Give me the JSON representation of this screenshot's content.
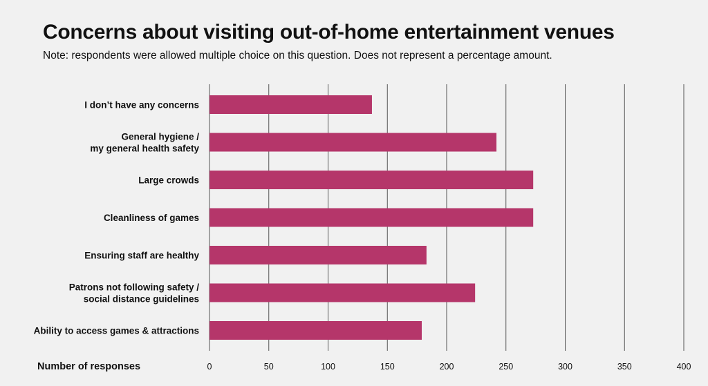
{
  "chart_data": {
    "type": "bar",
    "orientation": "horizontal",
    "title": "Concerns about visiting out-of-home entertainment venues",
    "subtitle": "Note: respondents were allowed multiple choice on this question.  Does not represent a percentage amount.",
    "xlabel": "Number of responses",
    "ylabel": "",
    "xlim": [
      0,
      400
    ],
    "xticks": [
      "0",
      "50",
      "100",
      "150",
      "200",
      "250",
      "300",
      "350",
      "400"
    ],
    "grid": true,
    "bar_color": "#b5366a",
    "categories": [
      [
        "I don’t have any concerns"
      ],
      [
        "General hygiene /",
        "my general health safety"
      ],
      [
        "Large crowds"
      ],
      [
        "Cleanliness of games"
      ],
      [
        "Ensuring staff are healthy"
      ],
      [
        "Patrons not following safety /",
        "social distance guidelines"
      ],
      [
        "Ability to access games & attractions"
      ]
    ],
    "values": [
      137,
      242,
      273,
      273,
      183,
      224,
      179
    ]
  }
}
